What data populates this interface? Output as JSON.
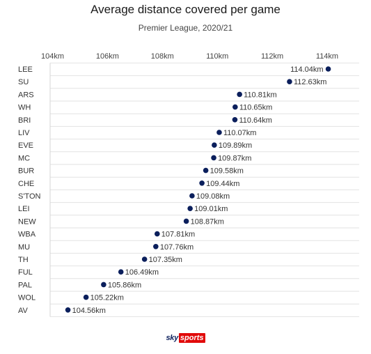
{
  "chart_data": {
    "type": "scatter",
    "title": "Average distance covered per game",
    "subtitle": "Premier League, 2020/21",
    "xlabel": "",
    "ylabel": "",
    "xlim": [
      104,
      114
    ],
    "x_ticks": [
      104,
      106,
      108,
      110,
      112,
      114
    ],
    "x_tick_labels": [
      "104km",
      "106km",
      "108km",
      "110km",
      "112km",
      "114km"
    ],
    "x_axis_position": "top",
    "grid": "horizontal",
    "legend": "none",
    "point_color": "#0b1f5c",
    "unit_suffix": "km",
    "categories": [
      "LEE",
      "SU",
      "ARS",
      "WH",
      "BRI",
      "LIV",
      "EVE",
      "MC",
      "BUR",
      "CHE",
      "S'TON",
      "LEI",
      "NEW",
      "WBA",
      "MU",
      "TH",
      "FUL",
      "PAL",
      "WOL",
      "AV"
    ],
    "values": [
      114.04,
      112.63,
      110.81,
      110.65,
      110.64,
      110.07,
      109.89,
      109.87,
      109.58,
      109.44,
      109.08,
      109.01,
      108.87,
      107.81,
      107.76,
      107.35,
      106.49,
      105.86,
      105.22,
      104.56
    ],
    "data_labels": [
      "114.04km",
      "112.63km",
      "110.81km",
      "110.65km",
      "110.64km",
      "110.07km",
      "109.89km",
      "109.87km",
      "109.58km",
      "109.44km",
      "109.08km",
      "109.01km",
      "108.87km",
      "107.81km",
      "107.76km",
      "107.35km",
      "106.49km",
      "105.86km",
      "105.22km",
      "104.56km"
    ]
  },
  "branding": {
    "sky": "sky",
    "sports": "sports",
    "accent": "#e10a0a"
  }
}
